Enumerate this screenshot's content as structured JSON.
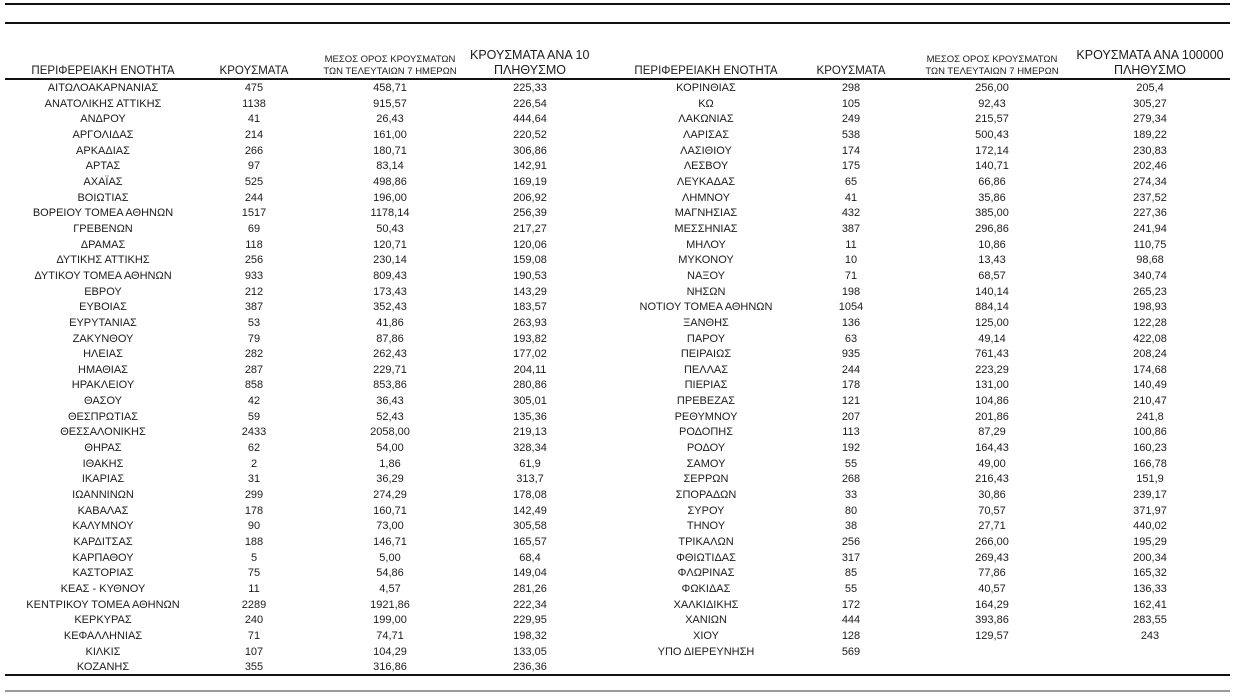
{
  "headers": {
    "region": "ΠΕΡΙΦΕΡΕΙΑΚΗ ΕΝΟΤΗΤΑ",
    "cases": "ΚΡΟΥΣΜΑΤΑ",
    "avg7_line1": "ΜΕΣΟΣ ΟΡΟΣ ΚΡΟΥΣΜΑΤΩΝ",
    "avg7_line2": "ΤΩΝ ΤΕΛΕΥΤΑΙΩΝ 7 ΗΜΕΡΩΝ",
    "per100k_line1": "ΚΡΟΥΣΜΑΤΑ ΑΝΑ 100000",
    "per100k_line2": "ΠΛΗΘΥΣΜΟ"
  },
  "colors": {
    "rule_dark": "#111111",
    "rule_gray": "#9a9a9a",
    "text": "#1c1c1c"
  },
  "tables": {
    "left": {
      "rows": [
        [
          "ΑΙΤΩΛΟΑΚΑΡΝΑΝΙΑΣ",
          "475",
          "458,71",
          "225,33"
        ],
        [
          "ΑΝΑΤΟΛΙΚΗΣ ΑΤΤΙΚΗΣ",
          "1138",
          "915,57",
          "226,54"
        ],
        [
          "ΑΝΔΡΟΥ",
          "41",
          "26,43",
          "444,64"
        ],
        [
          "ΑΡΓΟΛΙΔΑΣ",
          "214",
          "161,00",
          "220,52"
        ],
        [
          "ΑΡΚΑΔΙΑΣ",
          "266",
          "180,71",
          "306,86"
        ],
        [
          "ΑΡΤΑΣ",
          "97",
          "83,14",
          "142,91"
        ],
        [
          "ΑΧΑΪΑΣ",
          "525",
          "498,86",
          "169,19"
        ],
        [
          "ΒΟΙΩΤΙΑΣ",
          "244",
          "196,00",
          "206,92"
        ],
        [
          "ΒΟΡΕΙΟΥ ΤΟΜΕΑ ΑΘΗΝΩΝ",
          "1517",
          "1178,14",
          "256,39"
        ],
        [
          "ΓΡΕΒΕΝΩΝ",
          "69",
          "50,43",
          "217,27"
        ],
        [
          "ΔΡΑΜΑΣ",
          "118",
          "120,71",
          "120,06"
        ],
        [
          "ΔΥΤΙΚΗΣ ΑΤΤΙΚΗΣ",
          "256",
          "230,14",
          "159,08"
        ],
        [
          "ΔΥΤΙΚΟΥ ΤΟΜΕΑ ΑΘΗΝΩΝ",
          "933",
          "809,43",
          "190,53"
        ],
        [
          "ΕΒΡΟΥ",
          "212",
          "173,43",
          "143,29"
        ],
        [
          "ΕΥΒΟΙΑΣ",
          "387",
          "352,43",
          "183,57"
        ],
        [
          "ΕΥΡΥΤΑΝΙΑΣ",
          "53",
          "41,86",
          "263,93"
        ],
        [
          "ΖΑΚΥΝΘΟΥ",
          "79",
          "87,86",
          "193,82"
        ],
        [
          "ΗΛΕΙΑΣ",
          "282",
          "262,43",
          "177,02"
        ],
        [
          "ΗΜΑΘΙΑΣ",
          "287",
          "229,71",
          "204,11"
        ],
        [
          "ΗΡΑΚΛΕΙΟΥ",
          "858",
          "853,86",
          "280,86"
        ],
        [
          "ΘΑΣΟΥ",
          "42",
          "36,43",
          "305,01"
        ],
        [
          "ΘΕΣΠΡΩΤΙΑΣ",
          "59",
          "52,43",
          "135,36"
        ],
        [
          "ΘΕΣΣΑΛΟΝΙΚΗΣ",
          "2433",
          "2058,00",
          "219,13"
        ],
        [
          "ΘΗΡΑΣ",
          "62",
          "54,00",
          "328,34"
        ],
        [
          "ΙΘΑΚΗΣ",
          "2",
          "1,86",
          "61,9"
        ],
        [
          "ΙΚΑΡΙΑΣ",
          "31",
          "36,29",
          "313,7"
        ],
        [
          "ΙΩΑΝΝΙΝΩΝ",
          "299",
          "274,29",
          "178,08"
        ],
        [
          "ΚΑΒΑΛΑΣ",
          "178",
          "160,71",
          "142,49"
        ],
        [
          "ΚΑΛΥΜΝΟΥ",
          "90",
          "73,00",
          "305,58"
        ],
        [
          "ΚΑΡΔΙΤΣΑΣ",
          "188",
          "146,71",
          "165,57"
        ],
        [
          "ΚΑΡΠΑΘΟΥ",
          "5",
          "5,00",
          "68,4"
        ],
        [
          "ΚΑΣΤΟΡΙΑΣ",
          "75",
          "54,86",
          "149,04"
        ],
        [
          "ΚΕΑΣ - ΚΥΘΝΟΥ",
          "11",
          "4,57",
          "281,26"
        ],
        [
          "ΚΕΝΤΡΙΚΟΥ ΤΟΜΕΑ ΑΘΗΝΩΝ",
          "2289",
          "1921,86",
          "222,34"
        ],
        [
          "ΚΕΡΚΥΡΑΣ",
          "240",
          "199,00",
          "229,95"
        ],
        [
          "ΚΕΦΑΛΛΗΝΙΑΣ",
          "71",
          "74,71",
          "198,32"
        ],
        [
          "ΚΙΛΚΙΣ",
          "107",
          "104,29",
          "133,05"
        ],
        [
          "ΚΟΖΑΝΗΣ",
          "355",
          "316,86",
          "236,36"
        ]
      ]
    },
    "right": {
      "rows": [
        [
          "ΚΟΡΙΝΘΙΑΣ",
          "298",
          "256,00",
          "205,4"
        ],
        [
          "ΚΩ",
          "105",
          "92,43",
          "305,27"
        ],
        [
          "ΛΑΚΩΝΙΑΣ",
          "249",
          "215,57",
          "279,34"
        ],
        [
          "ΛΑΡΙΣΑΣ",
          "538",
          "500,43",
          "189,22"
        ],
        [
          "ΛΑΣΙΘΙΟΥ",
          "174",
          "172,14",
          "230,83"
        ],
        [
          "ΛΕΣΒΟΥ",
          "175",
          "140,71",
          "202,46"
        ],
        [
          "ΛΕΥΚΑΔΑΣ",
          "65",
          "66,86",
          "274,34"
        ],
        [
          "ΛΗΜΝΟΥ",
          "41",
          "35,86",
          "237,52"
        ],
        [
          "ΜΑΓΝΗΣΙΑΣ",
          "432",
          "385,00",
          "227,36"
        ],
        [
          "ΜΕΣΣΗΝΙΑΣ",
          "387",
          "296,86",
          "241,94"
        ],
        [
          "ΜΗΛΟΥ",
          "11",
          "10,86",
          "110,75"
        ],
        [
          "ΜΥΚΟΝΟΥ",
          "10",
          "13,43",
          "98,68"
        ],
        [
          "ΝΑΞΟΥ",
          "71",
          "68,57",
          "340,74"
        ],
        [
          "ΝΗΣΩΝ",
          "198",
          "140,14",
          "265,23"
        ],
        [
          "ΝΟΤΙΟΥ ΤΟΜΕΑ ΑΘΗΝΩΝ",
          "1054",
          "884,14",
          "198,93"
        ],
        [
          "ΞΑΝΘΗΣ",
          "136",
          "125,00",
          "122,28"
        ],
        [
          "ΠΑΡΟΥ",
          "63",
          "49,14",
          "422,08"
        ],
        [
          "ΠΕΙΡΑΙΩΣ",
          "935",
          "761,43",
          "208,24"
        ],
        [
          "ΠΕΛΛΑΣ",
          "244",
          "223,29",
          "174,68"
        ],
        [
          "ΠΙΕΡΙΑΣ",
          "178",
          "131,00",
          "140,49"
        ],
        [
          "ΠΡΕΒΕΖΑΣ",
          "121",
          "104,86",
          "210,47"
        ],
        [
          "ΡΕΘΥΜΝΟΥ",
          "207",
          "201,86",
          "241,8"
        ],
        [
          "ΡΟΔΟΠΗΣ",
          "113",
          "87,29",
          "100,86"
        ],
        [
          "ΡΟΔΟΥ",
          "192",
          "164,43",
          "160,23"
        ],
        [
          "ΣΑΜΟΥ",
          "55",
          "49,00",
          "166,78"
        ],
        [
          "ΣΕΡΡΩΝ",
          "268",
          "216,43",
          "151,9"
        ],
        [
          "ΣΠΟΡΑΔΩΝ",
          "33",
          "30,86",
          "239,17"
        ],
        [
          "ΣΥΡΟΥ",
          "80",
          "70,57",
          "371,97"
        ],
        [
          "ΤΗΝΟΥ",
          "38",
          "27,71",
          "440,02"
        ],
        [
          "ΤΡΙΚΑΛΩΝ",
          "256",
          "266,00",
          "195,29"
        ],
        [
          "ΦΘΙΩΤΙΔΑΣ",
          "317",
          "269,43",
          "200,34"
        ],
        [
          "ΦΛΩΡΙΝΑΣ",
          "85",
          "77,86",
          "165,32"
        ],
        [
          "ΦΩΚΙΔΑΣ",
          "55",
          "40,57",
          "136,33"
        ],
        [
          "ΧΑΛΚΙΔΙΚΗΣ",
          "172",
          "164,29",
          "162,41"
        ],
        [
          "ΧΑΝΙΩΝ",
          "444",
          "393,86",
          "283,55"
        ],
        [
          "ΧΙΟΥ",
          "128",
          "129,57",
          "243"
        ],
        [
          "ΥΠΟ ΔΙΕΡΕΥΝΗΣΗ",
          "569",
          "",
          ""
        ]
      ]
    }
  }
}
